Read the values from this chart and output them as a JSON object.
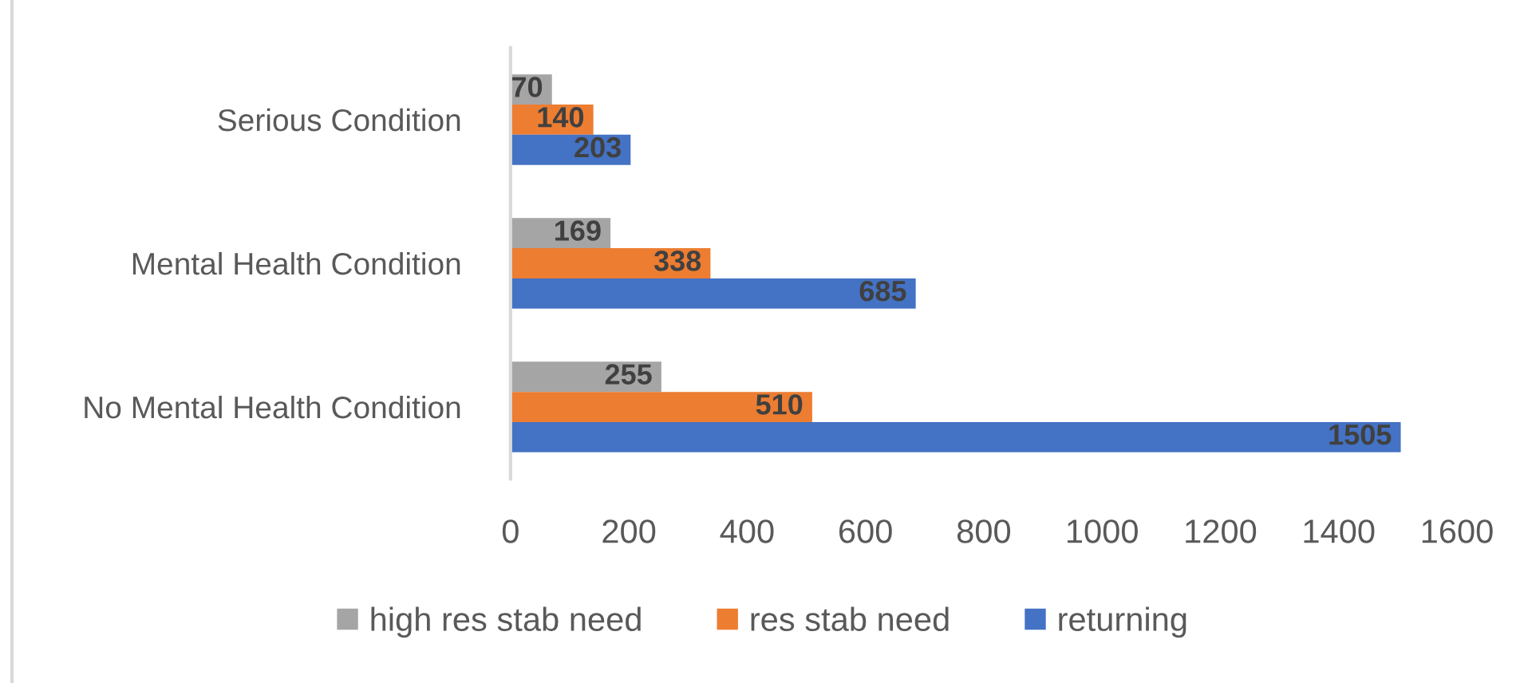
{
  "chart_data": {
    "type": "bar",
    "orientation": "horizontal",
    "categories": [
      "Serious Condition",
      "Mental Health Condition",
      "No Mental Health Condition"
    ],
    "series": [
      {
        "name": "high res stab need",
        "color": "#a5a5a5",
        "values": [
          70,
          169,
          255
        ]
      },
      {
        "name": "res stab need",
        "color": "#ed7d31",
        "values": [
          140,
          338,
          510
        ]
      },
      {
        "name": "returning",
        "color": "#4472c4",
        "values": [
          203,
          685,
          1505
        ]
      }
    ],
    "xlim": [
      0,
      1600
    ],
    "xticks": [
      0,
      200,
      400,
      600,
      800,
      1000,
      1200,
      1400,
      1600
    ],
    "data_labels": true,
    "legend": "bottom"
  }
}
